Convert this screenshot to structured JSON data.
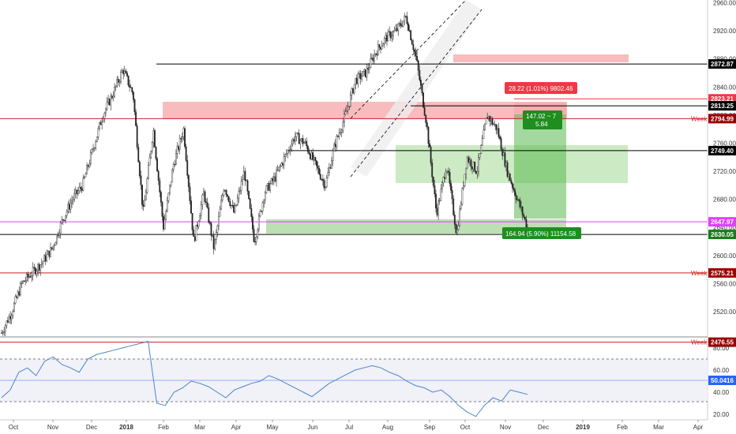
{
  "chart_data": [
    {
      "type": "candlestick",
      "title": "",
      "y_axis": {
        "range": [
          2484,
          2964
        ],
        "ticks": [
          "2960.00",
          "2920.00",
          "2880.00",
          "2840.00",
          "2800.00",
          "2760.00",
          "2720.00",
          "2680.00",
          "2640.00",
          "2600.00",
          "2560.00",
          "2520.00"
        ]
      },
      "x_axis": {
        "ticks": [
          "Oct",
          "Nov",
          "Dec",
          "2018",
          "Feb",
          "Mar",
          "Apr",
          "May",
          "Jun",
          "Jul",
          "Aug",
          "Sep",
          "Oct",
          "Nov",
          "Dec",
          "2019",
          "Feb",
          "Mar",
          "Apr"
        ]
      },
      "close_path": [
        2490,
        2520,
        2560,
        2575,
        2590,
        2610,
        2650,
        2680,
        2700,
        2750,
        2800,
        2830,
        2865,
        2830,
        2660,
        2780,
        2640,
        2730,
        2780,
        2620,
        2690,
        2610,
        2700,
        2660,
        2720,
        2620,
        2690,
        2710,
        2740,
        2770,
        2760,
        2730,
        2700,
        2760,
        2800,
        2850,
        2860,
        2890,
        2910,
        2920,
        2940,
        2880,
        2790,
        2660,
        2730,
        2630,
        2740,
        2720,
        2800,
        2780,
        2720,
        2680,
        2640
      ],
      "horizontal_levels": [
        {
          "price": 2872.87,
          "label": "2872.87",
          "color": "#000000",
          "tag_color": "#000000"
        },
        {
          "price": 2823.21,
          "label": "2823.21",
          "color": "#f23645",
          "tag_color": "#f23645"
        },
        {
          "price": 2813.25,
          "label": "2813.25",
          "color": "#000000",
          "tag_color": "#000000"
        },
        {
          "price": 2794.99,
          "label": "2794.99",
          "color": "#cc2222",
          "tag_color": "#990000",
          "note": "Weekly"
        },
        {
          "price": 2749.4,
          "label": "2749.40",
          "color": "#000000",
          "tag_color": "#000000"
        },
        {
          "price": 2647.97,
          "label": "2647.97",
          "color": "#e040fb",
          "tag_color": "#e040fb"
        },
        {
          "price": 2630.05,
          "label": "2630.05",
          "color": "#000000",
          "tag_color": "#1b7a1b"
        },
        {
          "price": 2575.21,
          "label": "2575.21",
          "color": "#cc2222",
          "tag_color": "#990000",
          "note": "Weekly"
        },
        {
          "price": 2476.55,
          "label": "2476.55",
          "color": "#cc2222",
          "tag_color": "#990000",
          "note": "Weekly"
        }
      ],
      "annotations": {
        "long_box": "164.94 (5.90%) 11154.58",
        "short_box": "28.22 (1.01%) 9802.46",
        "ratio_line1": "147.02 ~ 7",
        "ratio_line2": "5.84"
      }
    },
    {
      "type": "line",
      "title": "",
      "y_axis": {
        "range": [
          15,
          90
        ],
        "ticks": [
          "80.00",
          "60.00",
          "40.00",
          "20.00"
        ],
        "upper_band": 70,
        "lower_band": 30
      },
      "current_value": "50.0416",
      "series": [
        {
          "values": [
            35,
            42,
            58,
            62,
            55,
            68,
            72,
            65,
            62,
            58,
            70,
            74,
            76,
            78,
            80,
            82,
            84,
            86,
            30,
            28,
            40,
            44,
            50,
            48,
            45,
            40,
            35,
            42,
            45,
            48,
            50,
            55,
            52,
            48,
            44,
            40,
            36,
            42,
            48,
            52,
            56,
            60,
            62,
            64,
            62,
            58,
            55,
            50,
            46,
            44,
            40,
            42,
            36,
            28,
            22,
            18,
            28,
            35,
            32,
            42,
            40,
            38
          ]
        }
      ]
    }
  ]
}
